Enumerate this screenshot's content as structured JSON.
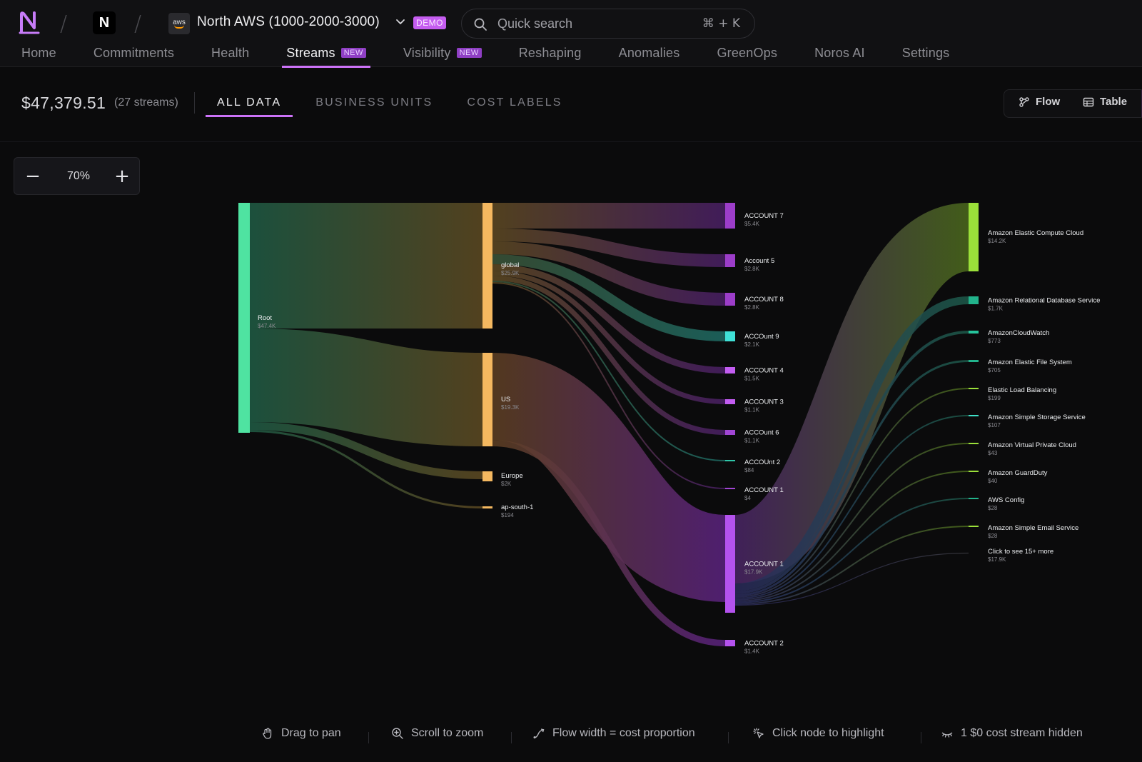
{
  "header": {
    "org_initial": "N",
    "aws_badge": "aws",
    "account_name": "North AWS (1000-2000-3000)",
    "demo_tag": "DEMO",
    "search_placeholder": "Quick search",
    "search_shortcut": "⌘ + K",
    "nav": [
      {
        "label": "Home",
        "active": false,
        "tag": ""
      },
      {
        "label": "Commitments",
        "active": false,
        "tag": ""
      },
      {
        "label": "Health",
        "active": false,
        "tag": ""
      },
      {
        "label": "Streams",
        "active": true,
        "tag": "NEW"
      },
      {
        "label": "Visibility",
        "active": false,
        "tag": "NEW"
      },
      {
        "label": "Reshaping",
        "active": false,
        "tag": ""
      },
      {
        "label": "Anomalies",
        "active": false,
        "tag": ""
      },
      {
        "label": "GreenOps",
        "active": false,
        "tag": ""
      },
      {
        "label": "Noros AI",
        "active": false,
        "tag": ""
      },
      {
        "label": "Settings",
        "active": false,
        "tag": ""
      }
    ]
  },
  "summary": {
    "total": "$47,379.51",
    "streams_count": "(27 streams)",
    "tabs": [
      "ALL DATA",
      "BUSINESS UNITS",
      "COST LABELS"
    ],
    "view_flow": "Flow",
    "view_table": "Table"
  },
  "zoom": {
    "minus": "−",
    "level": "70%",
    "plus": "+"
  },
  "sankey": {
    "nodes": [
      {
        "id": "root",
        "label": "Root",
        "value": "$47.4K",
        "color": "#4fe3a1"
      },
      {
        "id": "global",
        "label": "global",
        "value": "$25.9K",
        "color": "#f4b860"
      },
      {
        "id": "us",
        "label": "US",
        "value": "$19.3K",
        "color": "#f4b860"
      },
      {
        "id": "europe",
        "label": "Europe",
        "value": "$2K",
        "color": "#f4b860"
      },
      {
        "id": "ap",
        "label": "ap-south-1",
        "value": "$194",
        "color": "#f4b860"
      },
      {
        "id": "a7",
        "label": "ACCOUNT 7",
        "value": "$5.4K",
        "color": "#9c3dc9"
      },
      {
        "id": "a5",
        "label": "Account 5",
        "value": "$2.8K",
        "color": "#9c3dc9"
      },
      {
        "id": "a8",
        "label": "ACCOUNT 8",
        "value": "$2.8K",
        "color": "#9c3dc9"
      },
      {
        "id": "a9",
        "label": "ACCOunt 9",
        "value": "$2.1K",
        "color": "#3fe0d6"
      },
      {
        "id": "a4",
        "label": "ACCOUNT 4",
        "value": "$1.5K",
        "color": "#c35df2"
      },
      {
        "id": "a3",
        "label": "ACCOUNT 3",
        "value": "$1.1K",
        "color": "#c35df2"
      },
      {
        "id": "a6",
        "label": "ACCOunt 6",
        "value": "$1.1K",
        "color": "#a146d4"
      },
      {
        "id": "a2b",
        "label": "ACCOUnt 2",
        "value": "$84",
        "color": "#2fc6a8"
      },
      {
        "id": "a1s",
        "label": "ACCOUNT 1",
        "value": "$4",
        "color": "#a146d4"
      },
      {
        "id": "a1",
        "label": "ACCOUNT 1",
        "value": "$17.9K",
        "color": "#b452ee"
      },
      {
        "id": "a2",
        "label": "ACCOUNT 2",
        "value": "$1.4K",
        "color": "#b452ee"
      },
      {
        "id": "ec2",
        "label": "Amazon Elastic Compute Cloud",
        "value": "$14.2K",
        "color": "#9be03a"
      },
      {
        "id": "rds",
        "label": "Amazon Relational Database Service",
        "value": "$1.7K",
        "color": "#22b48c"
      },
      {
        "id": "cw",
        "label": "AmazonCloudWatch",
        "value": "$773",
        "color": "#26c49c"
      },
      {
        "id": "efs",
        "label": "Amazon Elastic File System",
        "value": "$705",
        "color": "#22b48c"
      },
      {
        "id": "elb",
        "label": "Elastic Load Balancing",
        "value": "$199",
        "color": "#9be03a"
      },
      {
        "id": "s3",
        "label": "Amazon Simple Storage Service",
        "value": "$107",
        "color": "#3fe0c8"
      },
      {
        "id": "vpc",
        "label": "Amazon Virtual Private Cloud",
        "value": "$43",
        "color": "#9be03a"
      },
      {
        "id": "gd",
        "label": "Amazon GuardDuty",
        "value": "$40",
        "color": "#9be03a"
      },
      {
        "id": "cfg",
        "label": "AWS Config",
        "value": "$28",
        "color": "#22b48c"
      },
      {
        "id": "ses",
        "label": "Amazon Simple Email Service",
        "value": "$28",
        "color": "#9be03a"
      },
      {
        "id": "more",
        "label": "Click to see 15+ more",
        "value": "$17.9K",
        "color": ""
      }
    ]
  },
  "hints": [
    {
      "icon": "hand-icon",
      "text": "Drag to pan"
    },
    {
      "icon": "zoom-icon",
      "text": "Scroll to zoom"
    },
    {
      "icon": "flow-width-icon",
      "text": "Flow width = cost proportion"
    },
    {
      "icon": "click-node-icon",
      "text": "Click node to highlight"
    },
    {
      "icon": "hidden-icon",
      "text": "1 $0 cost stream hidden"
    }
  ]
}
